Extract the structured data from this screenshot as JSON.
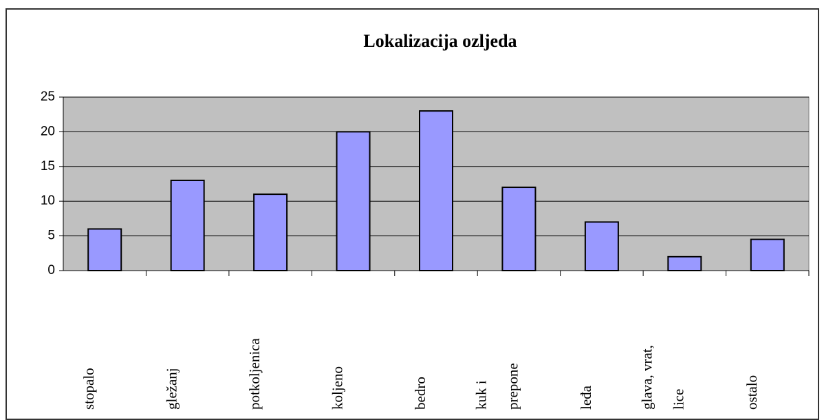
{
  "chart_data": {
    "type": "bar",
    "title": "Lokalizacija ozljeda",
    "categories": [
      "stopalo",
      "gležanj",
      "potkoljenica",
      "koljeno",
      "bedro",
      "kuk i prepone",
      "leđa",
      "glava, vrat, lice",
      "ostalo"
    ],
    "values": [
      6,
      13,
      11,
      20,
      23,
      12,
      7,
      2,
      4.5
    ],
    "color": "#9999ff",
    "ylim": [
      0,
      25
    ],
    "yticks": [
      0,
      5,
      10,
      15,
      20,
      25
    ],
    "grid": true
  }
}
